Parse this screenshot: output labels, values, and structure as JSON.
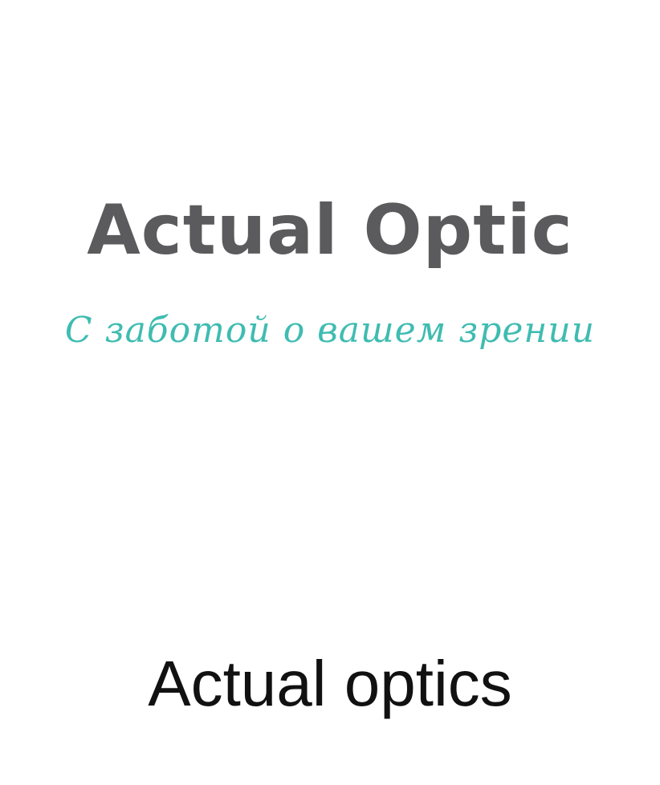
{
  "logo": {
    "wordmark": "Actual Optic",
    "tagline": "С заботой о вашем зрении",
    "colors": {
      "wordmark": "#5b5b5d",
      "tagline": "#3fbcb1"
    }
  },
  "title": "Actual optics"
}
